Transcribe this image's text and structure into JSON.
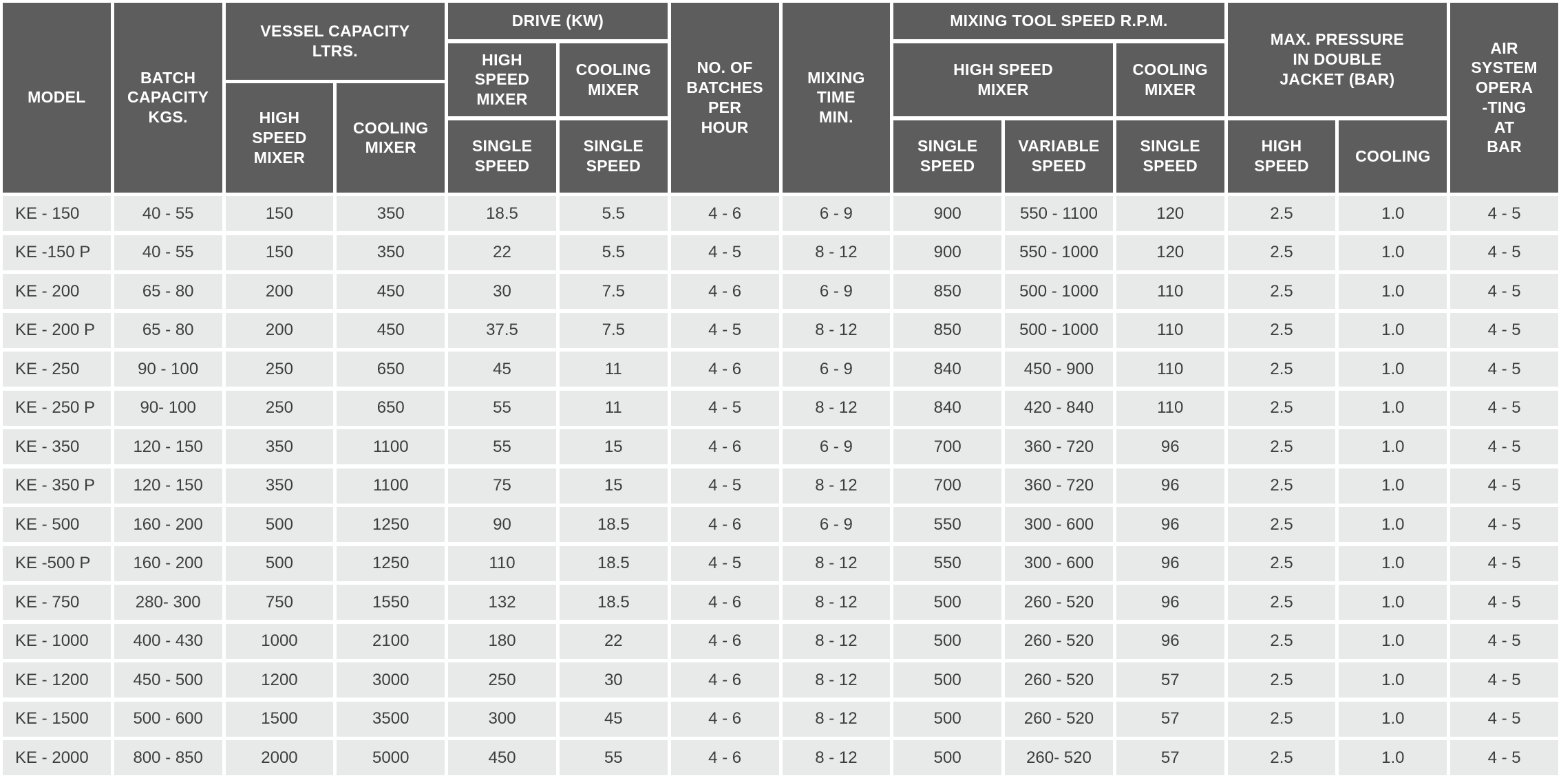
{
  "colors": {
    "header_bg": "#5d5d5d",
    "header_text": "#ffffff",
    "cell_bg": "#e8eae9",
    "cell_text": "#3d3d3d",
    "gap": "#ffffff"
  },
  "table": {
    "header": {
      "model": "MODEL",
      "batch_capacity": "BATCH\nCAPACITY\nKGS.",
      "vessel_capacity": {
        "title": "VESSEL CAPACITY\nLTRS.",
        "high_speed_mixer": "HIGH\nSPEED\nMIXER",
        "cooling_mixer": "COOLING\nMIXER"
      },
      "drive": {
        "title": "DRIVE (KW)",
        "high_speed_mixer": "HIGH\nSPEED\nMIXER",
        "cooling_mixer": "COOLING\nMIXER",
        "high_speed_single_speed": "SINGLE\nSPEED",
        "cooling_single_speed": "SINGLE\nSPEED"
      },
      "batches_per_hour": "NO. OF\nBATCHES\nPER\nHOUR",
      "mixing_time": "MIXING\nTIME\nMIN.",
      "mixing_tool_speed": {
        "title": "MIXING TOOL SPEED R.P.M.",
        "high_speed_mixer": "HIGH SPEED\nMIXER",
        "cooling_mixer": "COOLING\nMIXER",
        "single_speed": "SINGLE\nSPEED",
        "variable_speed": "VARIABLE\nSPEED",
        "cooling_single_speed": "SINGLE\nSPEED"
      },
      "max_pressure": {
        "title": "MAX. PRESSURE\nIN DOUBLE\nJACKET (BAR)",
        "high_speed": "HIGH\nSPEED",
        "cooling": "COOLING"
      },
      "air_system": "AIR\nSYSTEM\nOPERA\n-TING\nAT\nBAR"
    },
    "rows": [
      [
        "KE - 150",
        "40 - 55",
        "150",
        "350",
        "18.5",
        "5.5",
        "4 - 6",
        "6 - 9",
        "900",
        "550 - 1100",
        "120",
        "2.5",
        "1.0",
        "4 - 5"
      ],
      [
        "KE -150 P",
        "40 - 55",
        "150",
        "350",
        "22",
        "5.5",
        "4 - 5",
        "8 - 12",
        "900",
        "550 - 1000",
        "120",
        "2.5",
        "1.0",
        "4 - 5"
      ],
      [
        "KE - 200",
        "65 - 80",
        "200",
        "450",
        "30",
        "7.5",
        "4 - 6",
        "6 - 9",
        "850",
        "500 - 1000",
        "110",
        "2.5",
        "1.0",
        "4 - 5"
      ],
      [
        "KE - 200 P",
        "65 - 80",
        "200",
        "450",
        "37.5",
        "7.5",
        "4 - 5",
        "8 - 12",
        "850",
        "500 - 1000",
        "110",
        "2.5",
        "1.0",
        "4 - 5"
      ],
      [
        "KE - 250",
        "90 - 100",
        "250",
        "650",
        "45",
        "11",
        "4 - 6",
        "6 - 9",
        "840",
        "450 - 900",
        "110",
        "2.5",
        "1.0",
        "4 - 5"
      ],
      [
        "KE - 250 P",
        "90- 100",
        "250",
        "650",
        "55",
        "11",
        "4 - 5",
        "8 - 12",
        "840",
        "420 - 840",
        "110",
        "2.5",
        "1.0",
        "4 - 5"
      ],
      [
        "KE - 350",
        "120 - 150",
        "350",
        "1100",
        "55",
        "15",
        "4 - 6",
        "6 - 9",
        "700",
        "360 - 720",
        "96",
        "2.5",
        "1.0",
        "4 - 5"
      ],
      [
        "KE - 350 P",
        "120 - 150",
        "350",
        "1100",
        "75",
        "15",
        "4 - 5",
        "8 - 12",
        "700",
        "360 - 720",
        "96",
        "2.5",
        "1.0",
        "4 - 5"
      ],
      [
        "KE - 500",
        "160 - 200",
        "500",
        "1250",
        "90",
        "18.5",
        "4 - 6",
        "6 - 9",
        "550",
        "300 - 600",
        "96",
        "2.5",
        "1.0",
        "4 - 5"
      ],
      [
        "KE -500 P",
        "160 - 200",
        "500",
        "1250",
        "110",
        "18.5",
        "4 - 5",
        "8 - 12",
        "550",
        "300 - 600",
        "96",
        "2.5",
        "1.0",
        "4 - 5"
      ],
      [
        "KE - 750",
        "280- 300",
        "750",
        "1550",
        "132",
        "18.5",
        "4 - 6",
        "8 - 12",
        "500",
        "260 - 520",
        "96",
        "2.5",
        "1.0",
        "4 - 5"
      ],
      [
        "KE - 1000",
        "400 - 430",
        "1000",
        "2100",
        "180",
        "22",
        "4 - 6",
        "8 - 12",
        "500",
        "260 - 520",
        "96",
        "2.5",
        "1.0",
        "4 - 5"
      ],
      [
        "KE - 1200",
        "450 - 500",
        "1200",
        "3000",
        "250",
        "30",
        "4 - 6",
        "8 - 12",
        "500",
        "260 - 520",
        "57",
        "2.5",
        "1.0",
        "4 - 5"
      ],
      [
        "KE - 1500",
        "500 - 600",
        "1500",
        "3500",
        "300",
        "45",
        "4 - 6",
        "8 - 12",
        "500",
        "260 - 520",
        "57",
        "2.5",
        "1.0",
        "4 - 5"
      ],
      [
        "KE - 2000",
        "800 - 850",
        "2000",
        "5000",
        "450",
        "55",
        "4 - 6",
        "8 - 12",
        "500",
        "260- 520",
        "57",
        "2.5",
        "1.0",
        "4 - 5"
      ]
    ]
  }
}
